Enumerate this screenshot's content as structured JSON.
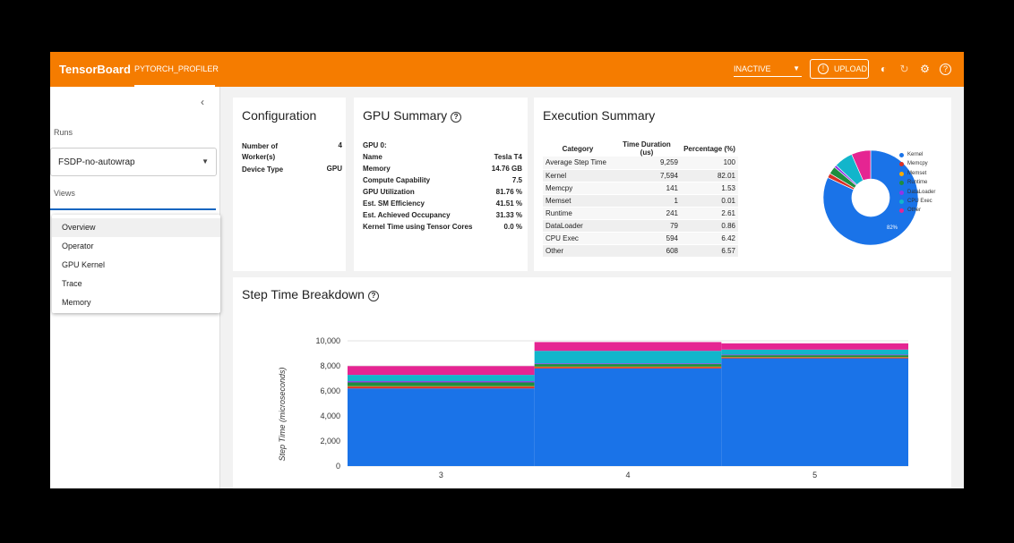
{
  "header": {
    "brand": "TensorBoard",
    "tab": "PYTORCH_PROFILER",
    "status": "INACTIVE",
    "upload_label": "UPLOAD",
    "icons": [
      "brightness-icon",
      "refresh-icon",
      "settings-icon",
      "help-icon"
    ],
    "color": "#f57c00"
  },
  "sidebar": {
    "runs_label": "Runs",
    "run_value": "FSDP-no-autowrap",
    "views_label": "Views",
    "menu": [
      "Overview",
      "Operator",
      "GPU Kernel",
      "Trace",
      "Memory"
    ]
  },
  "configuration": {
    "title": "Configuration",
    "rows": [
      {
        "key": "Number of Worker(s)",
        "value": "4"
      },
      {
        "key": "Device Type",
        "value": "GPU"
      }
    ]
  },
  "gpu_summary": {
    "title": "GPU Summary",
    "gpu_label": "GPU 0:",
    "rows": [
      {
        "key": "Name",
        "value": "Tesla T4"
      },
      {
        "key": "Memory",
        "value": "14.76 GB"
      },
      {
        "key": "Compute Capability",
        "value": "7.5"
      },
      {
        "key": "GPU Utilization",
        "value": "81.76 %"
      },
      {
        "key": "Est. SM Efficiency",
        "value": "41.51 %"
      },
      {
        "key": "Est. Achieved Occupancy",
        "value": "31.33 %"
      },
      {
        "key": "Kernel Time using Tensor Cores",
        "value": "0.0 %"
      }
    ]
  },
  "execution_summary": {
    "title": "Execution Summary",
    "columns": [
      "Category",
      "Time Duration (us)",
      "Percentage (%)"
    ],
    "rows": [
      [
        "Average Step Time",
        "9,259",
        "100"
      ],
      [
        "Kernel",
        "7,594",
        "82.01"
      ],
      [
        "Memcpy",
        "141",
        "1.53"
      ],
      [
        "Memset",
        "1",
        "0.01"
      ],
      [
        "Runtime",
        "241",
        "2.61"
      ],
      [
        "DataLoader",
        "79",
        "0.86"
      ],
      [
        "CPU Exec",
        "594",
        "6.42"
      ],
      [
        "Other",
        "608",
        "6.57"
      ]
    ],
    "pie_label": "82%",
    "pie": [
      {
        "name": "Kernel",
        "value": 82.01,
        "color": "#1a73e8"
      },
      {
        "name": "Memcpy",
        "value": 1.53,
        "color": "#d93025"
      },
      {
        "name": "Memset",
        "value": 0.01,
        "color": "#f9ab00"
      },
      {
        "name": "Runtime",
        "value": 2.61,
        "color": "#1e8e3e"
      },
      {
        "name": "DataLoader",
        "value": 0.86,
        "color": "#9334e6"
      },
      {
        "name": "CPU Exec",
        "value": 6.42,
        "color": "#12b5cb"
      },
      {
        "name": "Other",
        "value": 6.57,
        "color": "#e52592"
      }
    ]
  },
  "chart_data": {
    "type": "area",
    "title": "Step Time Breakdown",
    "xlabel": "",
    "ylabel": "Step Time (microseconds)",
    "ylim": [
      0,
      10000
    ],
    "yticks": [
      "10,000",
      "8,000",
      "6,000",
      "4,000",
      "2,000",
      "0"
    ],
    "categories": [
      "3",
      "4",
      "5"
    ],
    "series": [
      {
        "color": "#1a73e8",
        "values": [
          6200,
          7800,
          8600
        ]
      },
      {
        "color": "#d93025",
        "values": [
          150,
          120,
          80
        ]
      },
      {
        "color": "#f9ab00",
        "values": [
          30,
          20,
          20
        ]
      },
      {
        "color": "#1e8e3e",
        "values": [
          300,
          200,
          150
        ]
      },
      {
        "color": "#9334e6",
        "values": [
          100,
          60,
          50
        ]
      },
      {
        "color": "#12b5cb",
        "values": [
          500,
          1000,
          400
        ]
      },
      {
        "color": "#e52592",
        "values": [
          700,
          700,
          500
        ]
      }
    ]
  }
}
